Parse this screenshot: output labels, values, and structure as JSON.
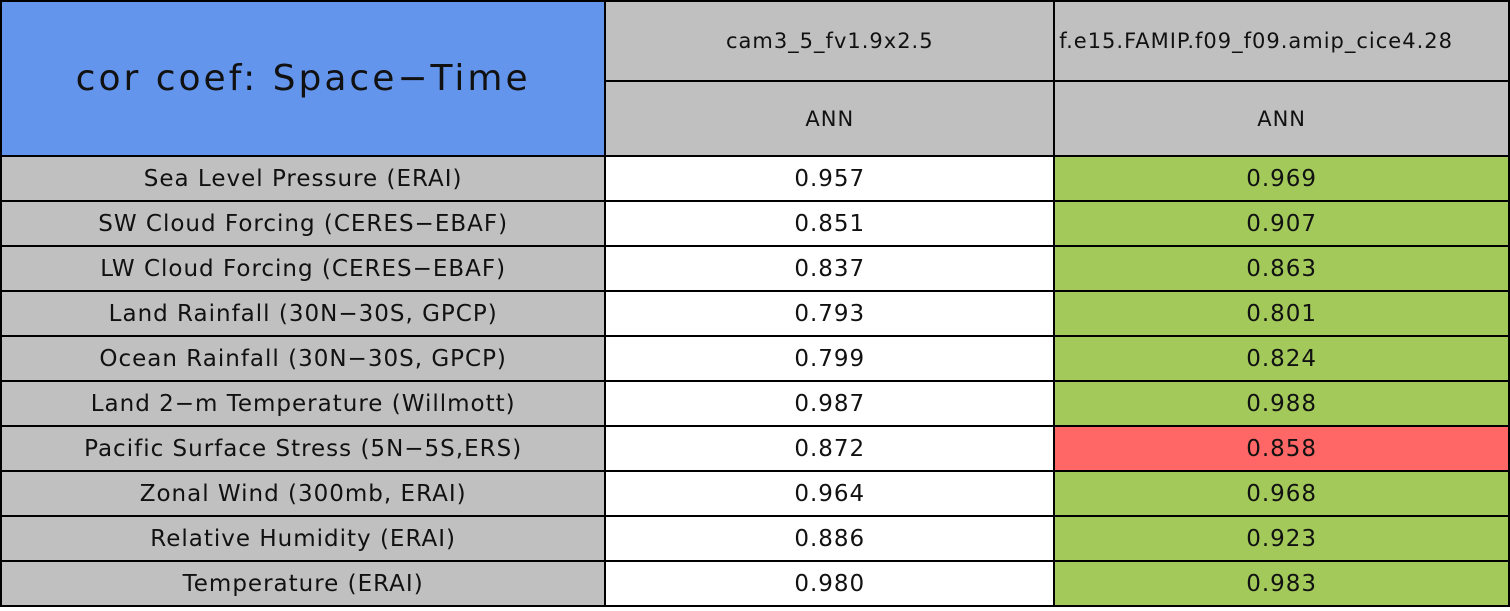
{
  "table": {
    "title": "cor coef: Space−Time",
    "columns": [
      {
        "name": "cam3_5_fv1.9x2.5",
        "season": "ANN"
      },
      {
        "name": "f.e15.FAMIP.f09_f09.amip_cice4.28",
        "season": "ANN"
      }
    ],
    "rows": [
      {
        "label": "Sea Level Pressure (ERAI)",
        "cells": [
          {
            "text": "0.957",
            "fill": "#ffffff"
          },
          {
            "text": "0.969",
            "fill": "#a2c95a"
          }
        ]
      },
      {
        "label": "SW Cloud Forcing (CERES−EBAF)",
        "cells": [
          {
            "text": "0.851",
            "fill": "#ffffff"
          },
          {
            "text": "0.907",
            "fill": "#a2c95a"
          }
        ]
      },
      {
        "label": "LW Cloud Forcing (CERES−EBAF)",
        "cells": [
          {
            "text": "0.837",
            "fill": "#ffffff"
          },
          {
            "text": "0.863",
            "fill": "#a2c95a"
          }
        ]
      },
      {
        "label": "Land Rainfall (30N−30S, GPCP)",
        "cells": [
          {
            "text": "0.793",
            "fill": "#ffffff"
          },
          {
            "text": "0.801",
            "fill": "#a2c95a"
          }
        ]
      },
      {
        "label": "Ocean Rainfall (30N−30S, GPCP)",
        "cells": [
          {
            "text": "0.799",
            "fill": "#ffffff"
          },
          {
            "text": "0.824",
            "fill": "#a2c95a"
          }
        ]
      },
      {
        "label": "Land 2−m Temperature (Willmott)",
        "cells": [
          {
            "text": "0.987",
            "fill": "#ffffff"
          },
          {
            "text": "0.988",
            "fill": "#a2c95a"
          }
        ]
      },
      {
        "label": "Pacific Surface Stress (5N−5S,ERS)",
        "cells": [
          {
            "text": "0.872",
            "fill": "#ffffff"
          },
          {
            "text": "0.858",
            "fill": "#ff6666"
          }
        ]
      },
      {
        "label": "Zonal Wind (300mb, ERAI)",
        "cells": [
          {
            "text": "0.964",
            "fill": "#ffffff"
          },
          {
            "text": "0.968",
            "fill": "#a2c95a"
          }
        ]
      },
      {
        "label": "Relative Humidity (ERAI)",
        "cells": [
          {
            "text": "0.886",
            "fill": "#ffffff"
          },
          {
            "text": "0.923",
            "fill": "#a2c95a"
          }
        ]
      },
      {
        "label": "Temperature (ERAI)",
        "cells": [
          {
            "text": "0.980",
            "fill": "#ffffff"
          },
          {
            "text": "0.983",
            "fill": "#a2c95a"
          }
        ]
      }
    ]
  }
}
